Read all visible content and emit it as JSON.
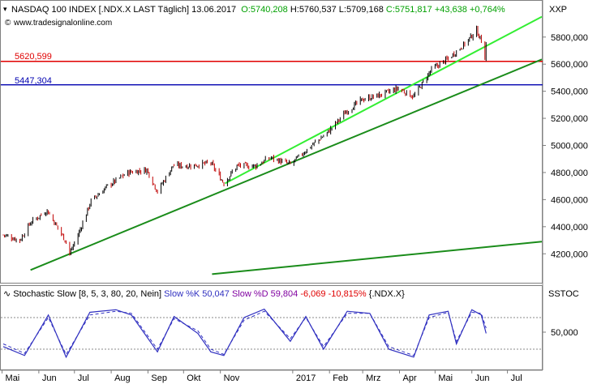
{
  "header": {
    "title": "NASDAQ 100 INDEX [.NDX.X LAST Täglich] 13.06.2017",
    "open": "O:5740,208",
    "high": "H:5760,537",
    "low": "L:5709,168",
    "close": "C:5751,817",
    "change": "+43,638",
    "change_pct": "+0,764%",
    "watermark": "www.tradesignalonline.com",
    "axis_unit": "XXP"
  },
  "price_panel": {
    "hline_red": {
      "label": "5620,599",
      "value": 5620.599,
      "color": "#e00000"
    },
    "hline_blue": {
      "label": "5447,304",
      "value": 5447.304,
      "color": "#0000b0"
    },
    "y_ticks": [
      {
        "value": 5800,
        "label": "5800,000"
      },
      {
        "value": 5600,
        "label": "5600,000"
      },
      {
        "value": 5400,
        "label": "5400,000"
      },
      {
        "value": 5200,
        "label": "5200,000"
      },
      {
        "value": 5000,
        "label": "5000,000"
      },
      {
        "value": 4800,
        "label": "4800,000"
      },
      {
        "value": 4600,
        "label": "4600,000"
      },
      {
        "value": 4400,
        "label": "4400,000"
      },
      {
        "value": 4200,
        "label": "4200,000"
      }
    ]
  },
  "indicator_panel": {
    "name": "Stochastic Slow [8, 5, 3, 80, 20, Nein]",
    "k_label": "Slow %K 50,047",
    "d_label": "Slow %D 59,804",
    "change": "-6,069",
    "change_pct": "-10,815%",
    "symbol": "{.NDX.X}",
    "axis_unit": "SSTOC",
    "y_tick": "50,000",
    "upper_level": 80,
    "lower_level": 20
  },
  "x_labels": [
    "Mai",
    "Jun",
    "Jul",
    "Aug",
    "Sep",
    "Okt",
    "Nov",
    "2017",
    "Feb",
    "Mrz",
    "Apr",
    "Mai",
    "Jun",
    "Jul"
  ],
  "colors": {
    "up": "#000000",
    "down": "#c00000",
    "trend_light": "#33ee33",
    "trend_dark": "#1a8c1a",
    "k_line": "#3030c0",
    "d_line": "#3030c0",
    "neg": "#e00000",
    "pos": "#00aa00"
  },
  "chart_data": {
    "type": "line",
    "title": "NASDAQ 100 INDEX [.NDX.X LAST Täglich] 13.06.2017",
    "x_label_months": [
      "Mai",
      "Jun",
      "Jul",
      "Aug",
      "Sep",
      "Okt",
      "Nov",
      "2017",
      "Feb",
      "Mrz",
      "Apr",
      "Mai",
      "Jun",
      "Jul"
    ],
    "ylim": [
      4070,
      5960
    ],
    "series": [
      {
        "x": [
          "2016-05-02",
          "2016-05-16",
          "2016-05-25",
          "2016-06-08",
          "2016-06-24",
          "2016-06-27",
          "2016-07-05",
          "2016-07-15",
          "2016-07-29",
          "2016-08-15",
          "2016-08-31",
          "2016-09-09",
          "2016-09-22",
          "2016-10-07",
          "2016-10-24",
          "2016-11-04",
          "2016-11-15",
          "2016-12-01",
          "2016-12-13",
          "2016-12-30",
          "2017-01-17",
          "2017-01-31",
          "2017-02-15",
          "2017-03-01",
          "2017-03-15",
          "2017-03-31",
          "2017-04-13",
          "2017-04-28",
          "2017-05-12",
          "2017-05-26",
          "2017-06-05",
          "2017-06-09",
          "2017-06-12",
          "2017-06-13"
        ],
        "values": [
          4340,
          4300,
          4430,
          4520,
          4290,
          4200,
          4360,
          4590,
          4700,
          4800,
          4820,
          4660,
          4850,
          4850,
          4870,
          4720,
          4850,
          4850,
          4910,
          4860,
          5000,
          5100,
          5250,
          5340,
          5370,
          5420,
          5360,
          5560,
          5640,
          5750,
          5850,
          5770,
          5650,
          5752
        ]
      }
    ],
    "trendlines": [
      {
        "from": [
          "2016-05-25",
          4080
        ],
        "to": [
          "2017-07-30",
          5635
        ]
      },
      {
        "from": [
          "2016-11-05",
          4720
        ],
        "to": [
          "2017-07-30",
          5950
        ]
      },
      {
        "from": [
          "2016-10-25",
          4050
        ],
        "to": [
          "2017-07-30",
          4290
        ]
      }
    ],
    "stochastic": {
      "x": [
        "2016-05-02",
        "2016-05-20",
        "2016-06-09",
        "2016-06-24",
        "2016-07-14",
        "2016-08-05",
        "2016-08-18",
        "2016-09-09",
        "2016-09-23",
        "2016-10-13",
        "2016-10-24",
        "2016-11-04",
        "2016-11-21",
        "2016-12-08",
        "2016-12-30",
        "2017-01-12",
        "2017-01-27",
        "2017-02-16",
        "2017-03-07",
        "2017-03-23",
        "2017-04-13",
        "2017-04-26",
        "2017-05-12",
        "2017-05-19",
        "2017-06-01",
        "2017-06-09",
        "2017-06-13"
      ],
      "k": [
        25,
        8,
        85,
        5,
        90,
        95,
        85,
        15,
        82,
        50,
        15,
        8,
        80,
        96,
        35,
        82,
        20,
        92,
        88,
        20,
        5,
        85,
        92,
        30,
        95,
        85,
        50
      ],
      "d": [
        30,
        12,
        80,
        10,
        85,
        92,
        88,
        20,
        78,
        55,
        20,
        10,
        75,
        92,
        40,
        80,
        25,
        88,
        88,
        25,
        8,
        80,
        90,
        35,
        90,
        88,
        60
      ]
    }
  }
}
